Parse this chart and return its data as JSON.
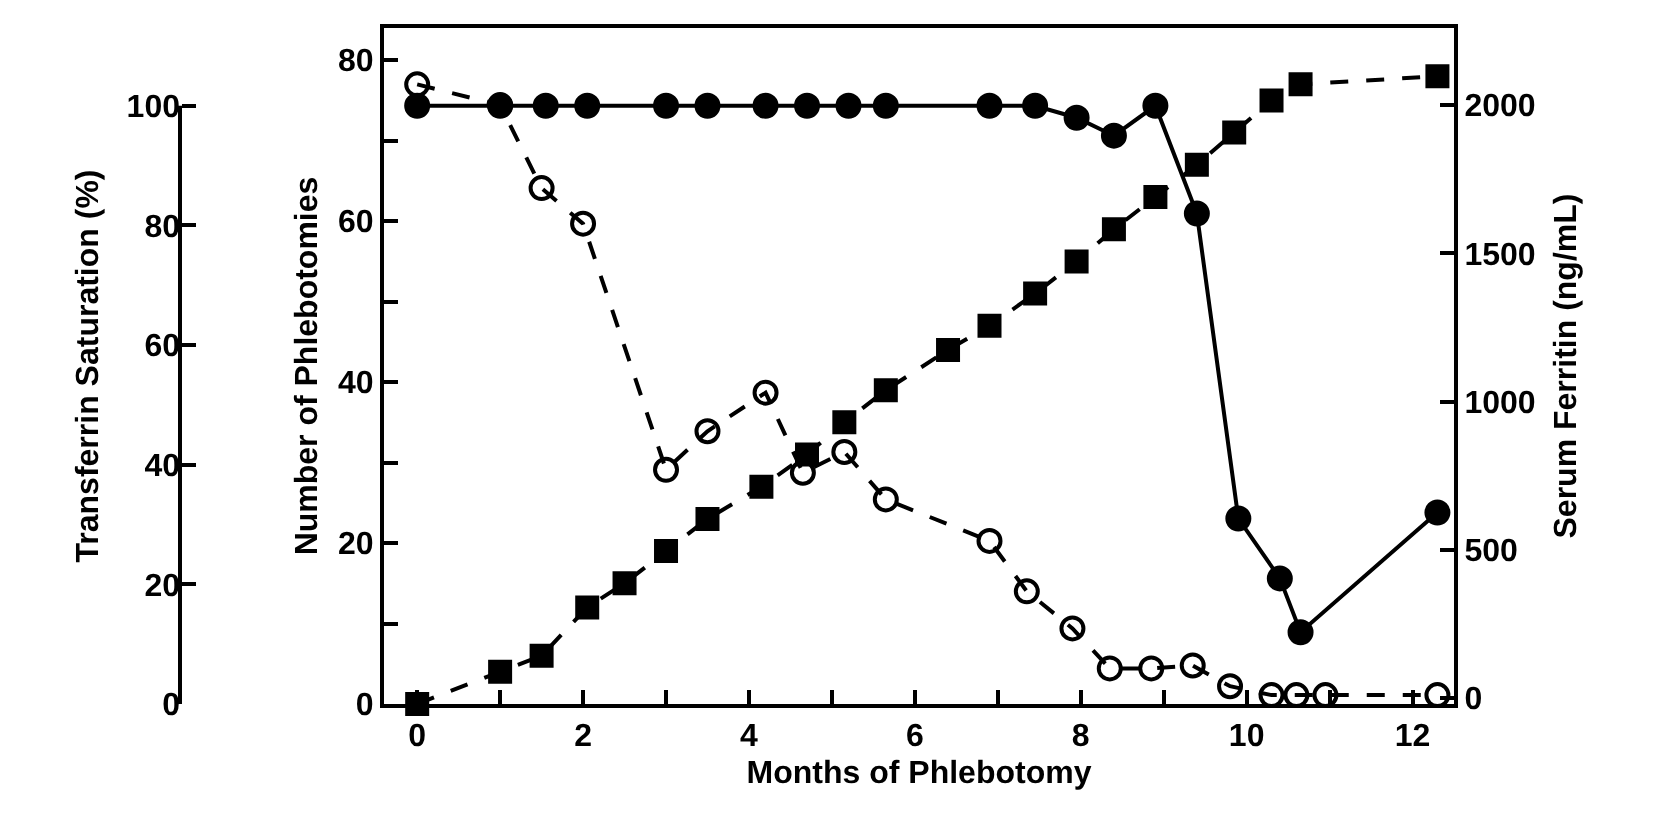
{
  "chart_data": {
    "type": "line",
    "xlabel": "Months of Phlebotomy",
    "ylabel": "Number of Phlebotomies",
    "y2label": "Transferrin Saturation (%)",
    "y3label": "Serum Ferritin (ng/mL)",
    "xlim": [
      -0.4,
      12.5
    ],
    "xticks": [
      0,
      {
        "value": 1,
        "label": null
      },
      2,
      {
        "value": 3,
        "label": null
      },
      4,
      {
        "value": 5,
        "label": null
      },
      6,
      {
        "value": 7,
        "label": null
      },
      8,
      {
        "value": 9,
        "label": null
      },
      10,
      {
        "value": 11,
        "label": null
      },
      12
    ],
    "ylim": [
      0,
      84
    ],
    "yticks": [
      0,
      {
        "value": 10,
        "label": null
      },
      20,
      {
        "value": 30,
        "label": null
      },
      40,
      {
        "value": 50,
        "label": null
      },
      60,
      {
        "value": 70,
        "label": null
      },
      80
    ],
    "y2lim": [
      0,
      113
    ],
    "y2ticks": [
      0,
      20,
      40,
      60,
      80,
      100
    ],
    "y3lim": [
      -20,
      2260
    ],
    "y3ticks": [
      0,
      500,
      1000,
      1500,
      2000
    ],
    "series": [
      {
        "axis": "y",
        "color": "#000000",
        "marker": "square",
        "line_style": "dashed",
        "x": [
          0,
          1,
          1.5,
          2.05,
          2.5,
          3,
          3.5,
          4.15,
          4.7,
          5.15,
          5.65,
          6.4,
          6.9,
          7.45,
          7.95,
          8.4,
          8.9,
          9.4,
          9.85,
          10.3,
          10.65,
          12.3
        ],
        "values": [
          0,
          4,
          6,
          12,
          15,
          19,
          23,
          27,
          31,
          35,
          39,
          44,
          47,
          51,
          55,
          59,
          63,
          67,
          71,
          75,
          77,
          78
        ]
      },
      {
        "axis": "y2",
        "color": "#000000",
        "marker": "circle",
        "line_style": "solid",
        "x": [
          0,
          1,
          1.55,
          2.05,
          3,
          3.5,
          4.2,
          4.7,
          5.2,
          5.65,
          6.9,
          7.45,
          7.95,
          8.4,
          8.9,
          9.4,
          9.9,
          10.4,
          10.65,
          12.3
        ],
        "values": [
          100,
          100,
          100,
          100,
          100,
          100,
          100,
          100,
          100,
          100,
          100,
          100,
          98,
          95,
          100,
          82,
          31,
          21,
          12,
          32
        ]
      },
      {
        "axis": "y3",
        "color": "#000000",
        "marker": "circle-open",
        "line_style": "dashed",
        "x": [
          0,
          1,
          1.5,
          2,
          3,
          3.5,
          4.2,
          4.65,
          5.15,
          5.65,
          6.9,
          7.35,
          7.9,
          8.35,
          8.85,
          9.35,
          9.8,
          10.3,
          10.6,
          10.95,
          12.3
        ],
        "values": [
          2070,
          2000,
          1720,
          1600,
          770,
          900,
          1030,
          760,
          830,
          670,
          530,
          360,
          235,
          100,
          100,
          110,
          40,
          10,
          10,
          10,
          10
        ]
      }
    ]
  }
}
